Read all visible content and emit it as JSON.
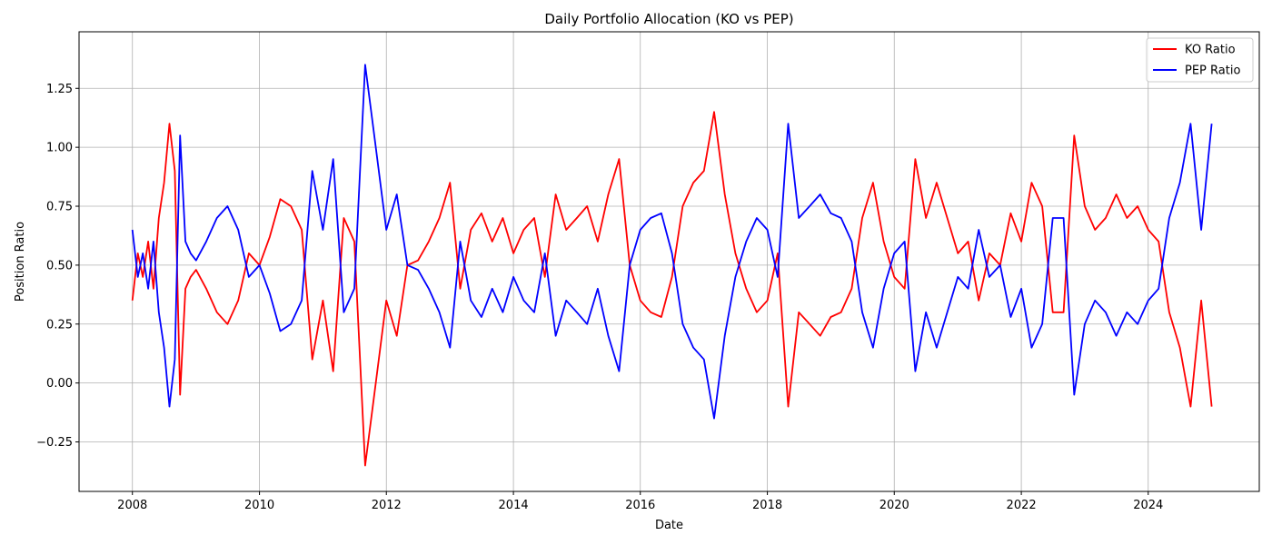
{
  "chart_data": {
    "type": "line",
    "title": "Daily Portfolio Allocation (KO vs PEP)",
    "xlabel": "Date",
    "ylabel": "Position Ratio",
    "xlim": [
      "2007-02-28",
      "2025-10-01"
    ],
    "ylim": [
      -0.46,
      1.49
    ],
    "x_ticks": [
      "2008",
      "2010",
      "2012",
      "2014",
      "2016",
      "2018",
      "2020",
      "2022",
      "2024"
    ],
    "y_ticks": [
      -0.25,
      0.0,
      0.25,
      0.5,
      0.75,
      1.0,
      1.25
    ],
    "grid": true,
    "legend_position": "top-right",
    "colors": {
      "KO Ratio": "#ff0000",
      "PEP Ratio": "#0000ff"
    },
    "x": [
      "2008-01-01",
      "2008-02-01",
      "2008-03-01",
      "2008-04-01",
      "2008-05-01",
      "2008-06-01",
      "2008-07-01",
      "2008-08-01",
      "2008-09-01",
      "2008-10-01",
      "2008-11-01",
      "2008-12-01",
      "2009-01-01",
      "2009-03-01",
      "2009-05-01",
      "2009-07-01",
      "2009-09-01",
      "2009-11-01",
      "2010-01-01",
      "2010-03-01",
      "2010-05-01",
      "2010-07-01",
      "2010-09-01",
      "2010-11-01",
      "2011-01-01",
      "2011-03-01",
      "2011-05-01",
      "2011-07-01",
      "2011-09-01",
      "2011-11-01",
      "2012-01-01",
      "2012-03-01",
      "2012-05-01",
      "2012-07-01",
      "2012-09-01",
      "2012-11-01",
      "2013-01-01",
      "2013-03-01",
      "2013-05-01",
      "2013-07-01",
      "2013-09-01",
      "2013-11-01",
      "2014-01-01",
      "2014-03-01",
      "2014-05-01",
      "2014-07-01",
      "2014-09-01",
      "2014-11-01",
      "2015-01-01",
      "2015-03-01",
      "2015-05-01",
      "2015-07-01",
      "2015-09-01",
      "2015-11-01",
      "2016-01-01",
      "2016-03-01",
      "2016-05-01",
      "2016-07-01",
      "2016-09-01",
      "2016-11-01",
      "2017-01-01",
      "2017-03-01",
      "2017-05-01",
      "2017-07-01",
      "2017-09-01",
      "2017-11-01",
      "2018-01-01",
      "2018-03-01",
      "2018-05-01",
      "2018-07-01",
      "2018-09-01",
      "2018-11-01",
      "2019-01-01",
      "2019-03-01",
      "2019-05-01",
      "2019-07-01",
      "2019-09-01",
      "2019-11-01",
      "2020-01-01",
      "2020-03-01",
      "2020-05-01",
      "2020-07-01",
      "2020-09-01",
      "2020-11-01",
      "2021-01-01",
      "2021-03-01",
      "2021-05-01",
      "2021-07-01",
      "2021-09-01",
      "2021-11-01",
      "2022-01-01",
      "2022-03-01",
      "2022-05-01",
      "2022-07-01",
      "2022-09-01",
      "2022-11-01",
      "2023-01-01",
      "2023-03-01",
      "2023-05-01",
      "2023-07-01",
      "2023-09-01",
      "2023-11-01",
      "2024-01-01",
      "2024-03-01",
      "2024-05-01",
      "2024-07-01",
      "2024-09-01",
      "2024-11-01",
      "2024-12-31"
    ],
    "series": [
      {
        "name": "KO Ratio",
        "values": [
          0.35,
          0.55,
          0.45,
          0.6,
          0.4,
          0.7,
          0.85,
          1.1,
          0.9,
          -0.05,
          0.4,
          0.45,
          0.48,
          0.4,
          0.3,
          0.25,
          0.35,
          0.55,
          0.5,
          0.62,
          0.78,
          0.75,
          0.65,
          0.1,
          0.35,
          0.05,
          0.7,
          0.6,
          -0.35,
          0.0,
          0.35,
          0.2,
          0.5,
          0.52,
          0.6,
          0.7,
          0.85,
          0.4,
          0.65,
          0.72,
          0.6,
          0.7,
          0.55,
          0.65,
          0.7,
          0.45,
          0.8,
          0.65,
          0.7,
          0.75,
          0.6,
          0.8,
          0.95,
          0.5,
          0.35,
          0.3,
          0.28,
          0.45,
          0.75,
          0.85,
          0.9,
          1.15,
          0.8,
          0.55,
          0.4,
          0.3,
          0.35,
          0.55,
          -0.1,
          0.3,
          0.25,
          0.2,
          0.28,
          0.3,
          0.4,
          0.7,
          0.85,
          0.6,
          0.45,
          0.4,
          0.95,
          0.7,
          0.85,
          0.7,
          0.55,
          0.6,
          0.35,
          0.55,
          0.5,
          0.72,
          0.6,
          0.85,
          0.75,
          0.3,
          0.3,
          1.05,
          0.75,
          0.65,
          0.7,
          0.8,
          0.7,
          0.75,
          0.65,
          0.6,
          0.3,
          0.15,
          -0.1,
          0.35,
          -0.1
        ]
      },
      {
        "name": "PEP Ratio",
        "values": [
          0.65,
          0.45,
          0.55,
          0.4,
          0.6,
          0.3,
          0.15,
          -0.1,
          0.1,
          1.05,
          0.6,
          0.55,
          0.52,
          0.6,
          0.7,
          0.75,
          0.65,
          0.45,
          0.5,
          0.38,
          0.22,
          0.25,
          0.35,
          0.9,
          0.65,
          0.95,
          0.3,
          0.4,
          1.35,
          1.0,
          0.65,
          0.8,
          0.5,
          0.48,
          0.4,
          0.3,
          0.15,
          0.6,
          0.35,
          0.28,
          0.4,
          0.3,
          0.45,
          0.35,
          0.3,
          0.55,
          0.2,
          0.35,
          0.3,
          0.25,
          0.4,
          0.2,
          0.05,
          0.5,
          0.65,
          0.7,
          0.72,
          0.55,
          0.25,
          0.15,
          0.1,
          -0.15,
          0.2,
          0.45,
          0.6,
          0.7,
          0.65,
          0.45,
          1.1,
          0.7,
          0.75,
          0.8,
          0.72,
          0.7,
          0.6,
          0.3,
          0.15,
          0.4,
          0.55,
          0.6,
          0.05,
          0.3,
          0.15,
          0.3,
          0.45,
          0.4,
          0.65,
          0.45,
          0.5,
          0.28,
          0.4,
          0.15,
          0.25,
          0.7,
          0.7,
          -0.05,
          0.25,
          0.35,
          0.3,
          0.2,
          0.3,
          0.25,
          0.35,
          0.4,
          0.7,
          0.85,
          1.1,
          0.65,
          1.1
        ]
      }
    ]
  }
}
